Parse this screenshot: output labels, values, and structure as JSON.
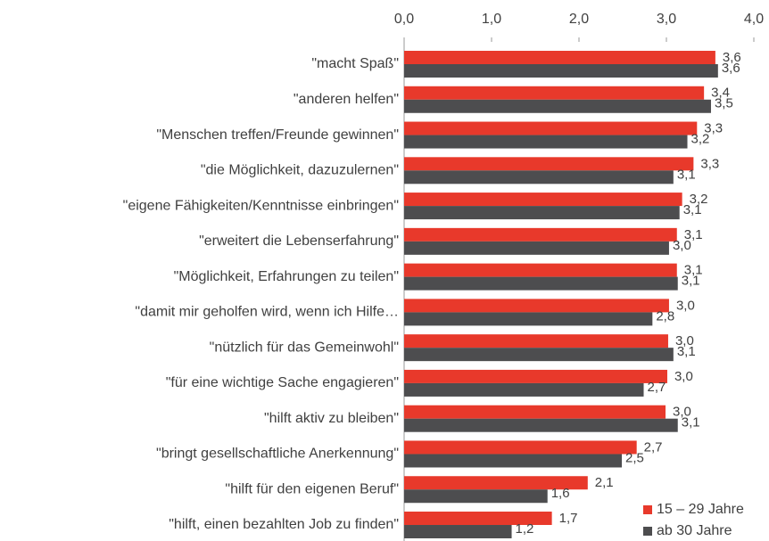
{
  "chart_data": {
    "type": "hbar",
    "categories": [
      "\"macht Spaß\"",
      "\"anderen helfen\"",
      "\"Menschen treffen/Freunde gewinnen\"",
      "\"die Möglichkeit, dazuzulernen\"",
      "\"eigene Fähigkeiten/Kenntnisse einbringen\"",
      "\"erweitert die Lebenserfahrung\"",
      "\"Möglichkeit, Erfahrungen zu teilen\"",
      "\"damit mir geholfen wird, wenn ich Hilfe…",
      "\"nützlich für das Gemeinwohl\"",
      "\"für eine wichtige Sache engagieren\"",
      "\"hilft aktiv zu bleiben\"",
      "\"bringt gesellschaftliche Anerkennung\"",
      "\"hilft für den eigenen Beruf\"",
      "\"hilft, einen bezahlten Job zu finden\""
    ],
    "series": [
      {
        "name": "15 – 29 Jahre",
        "color": "#e8392b",
        "values": [
          3.56,
          3.43,
          3.35,
          3.31,
          3.18,
          3.12,
          3.12,
          3.03,
          3.02,
          3.01,
          2.99,
          2.66,
          2.1,
          1.69
        ],
        "value_labels": [
          "3,6",
          "3,4",
          "3,3",
          "3,3",
          "3,2",
          "3,1",
          "3,1",
          "3,0",
          "3,0",
          "3,0",
          "3,0",
          "2,7",
          "2,1",
          "1,7"
        ]
      },
      {
        "name": "ab 30 Jahre",
        "color": "#4d4d4f",
        "values": [
          3.59,
          3.51,
          3.24,
          3.08,
          3.15,
          3.03,
          3.13,
          2.84,
          3.08,
          2.74,
          3.13,
          2.49,
          1.64,
          1.23
        ],
        "value_labels": [
          "3,6",
          "3,5",
          "3,2",
          "3,1",
          "3,1",
          "3,0",
          "3,1",
          "2,8",
          "3,1",
          "2,7",
          "3,1",
          "2,5",
          "1,6",
          "1,2"
        ]
      }
    ],
    "xlim": [
      0,
      4
    ],
    "xticks": [
      {
        "value": 0,
        "label": "0,0"
      },
      {
        "value": 1,
        "label": "1,0"
      },
      {
        "value": 2,
        "label": "2,0"
      },
      {
        "value": 3,
        "label": "3,0"
      },
      {
        "value": 4,
        "label": "4,0"
      }
    ],
    "legend": "lower right"
  }
}
